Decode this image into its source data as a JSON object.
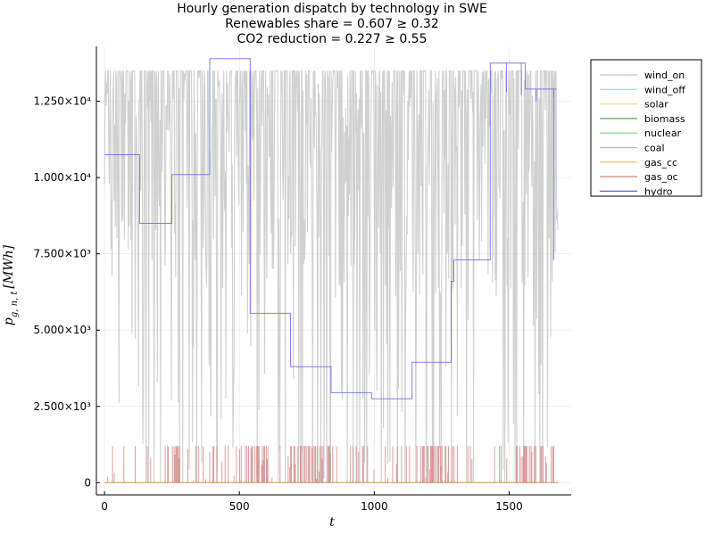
{
  "chart_data": {
    "type": "line",
    "title": "Hourly generation dispatch by technology in SWE",
    "subtitle_1": "Renewables share = 0.607 ≥ 0.32",
    "subtitle_2": "CO2 reduction = 0.227 ≥ 0.55",
    "xlabel": "t",
    "ylabel_main": "p",
    "ylabel_sub": "g, n, t",
    "ylabel_unit": "[MWh]",
    "xlim": [
      -30,
      1730
    ],
    "ylim": [
      -400,
      14300
    ],
    "x_ticks": [
      0,
      500,
      1000,
      1500
    ],
    "x_tick_labels": [
      "0",
      "500",
      "1000",
      "1500"
    ],
    "y_ticks": [
      0,
      2500,
      5000,
      7500,
      10000,
      12500
    ],
    "y_tick_labels": [
      "0",
      "2.500×10³",
      "5.000×10³",
      "7.500×10³",
      "1.000×10⁴",
      "1.250×10⁴"
    ],
    "grid": true,
    "legend_position": "outside-top-right",
    "wind_on_max": 13500,
    "gas_oc_max": 1200,
    "series": [
      {
        "name": "wind_on",
        "color": "#c8c8c8",
        "kind": "noisy"
      },
      {
        "name": "wind_off",
        "color": "#7fe0f0",
        "kind": "zero"
      },
      {
        "name": "solar",
        "color": "#f0e070",
        "kind": "zero"
      },
      {
        "name": "biomass",
        "color": "#4caf50",
        "kind": "zero"
      },
      {
        "name": "nuclear",
        "color": "#7fd07f",
        "kind": "zero"
      },
      {
        "name": "coal",
        "color": "#d4a6d4",
        "kind": "zero"
      },
      {
        "name": "gas_cc",
        "color": "#f0b060",
        "kind": "zero"
      },
      {
        "name": "gas_oc",
        "color": "#d08080",
        "kind": "spikes"
      },
      {
        "name": "hydro",
        "color": "#6060f0",
        "kind": "steps",
        "x": [
          0,
          130,
          130,
          250,
          250,
          390,
          390,
          540,
          540,
          690,
          690,
          840,
          840,
          990,
          990,
          1140,
          1140,
          1285,
          1285,
          1295,
          1295,
          1430,
          1430,
          1560,
          1560,
          1675
        ],
        "y": [
          10750,
          10750,
          8500,
          8500,
          10100,
          10100,
          13900,
          13900,
          5550,
          5550,
          3800,
          3800,
          2950,
          2950,
          2750,
          2750,
          3950,
          3950,
          6600,
          6600,
          7300,
          7300,
          13750,
          13750,
          12900,
          12900
        ]
      }
    ]
  }
}
